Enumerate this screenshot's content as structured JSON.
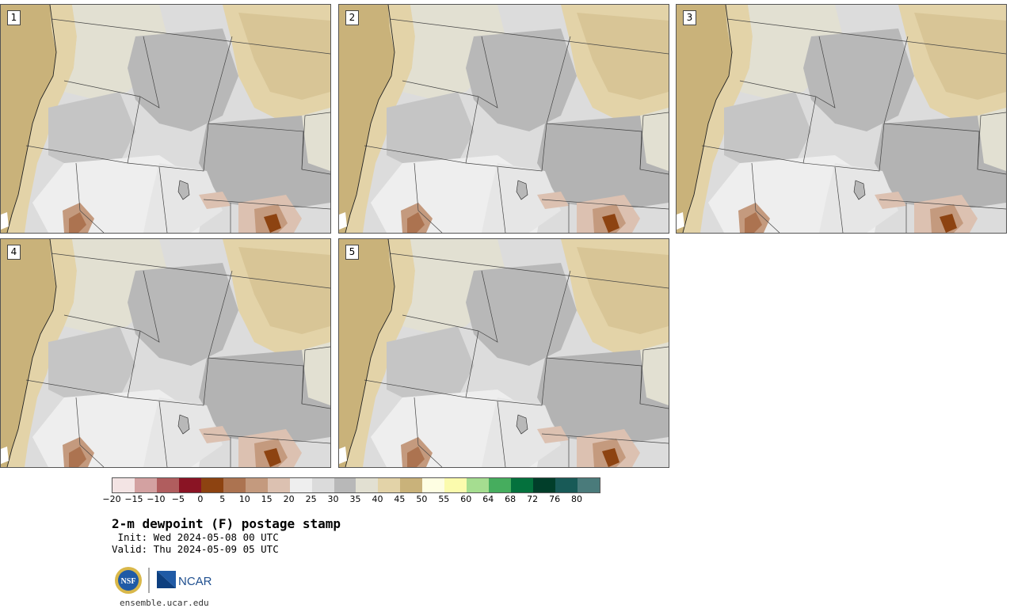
{
  "panels": [
    {
      "label": "1"
    },
    {
      "label": "2"
    },
    {
      "label": "3"
    },
    {
      "label": "4"
    },
    {
      "label": "5"
    }
  ],
  "colorbar": {
    "ticks": [
      "−20",
      "−15",
      "−10",
      "−5",
      "0",
      "5",
      "10",
      "15",
      "20",
      "25",
      "30",
      "35",
      "40",
      "45",
      "50",
      "55",
      "60",
      "64",
      "68",
      "72",
      "76",
      "80"
    ],
    "colors": [
      "#f3e4e4",
      "#d3a1a1",
      "#b05d5e",
      "#8a1424",
      "#8d4311",
      "#ac7350",
      "#c49a7e",
      "#dcc1b1",
      "#eeeeee",
      "#dbdbdb",
      "#b8b8b8",
      "#e2e0d2",
      "#e3d3a8",
      "#c9b27a",
      "#fefee2",
      "#fbfbad",
      "#a5dd90",
      "#46ad5e",
      "#04713d",
      "#013e2a",
      "#185a57",
      "#4a7b7b"
    ]
  },
  "title": "2-m dewpoint (F) postage stamp",
  "init": " Init: Wed 2024-05-08 00 UTC",
  "valid": "Valid: Thu 2024-05-09 05 UTC",
  "logos": {
    "nsf": "NSF",
    "ncar": "NCAR"
  },
  "url": "ensemble.ucar.edu"
}
